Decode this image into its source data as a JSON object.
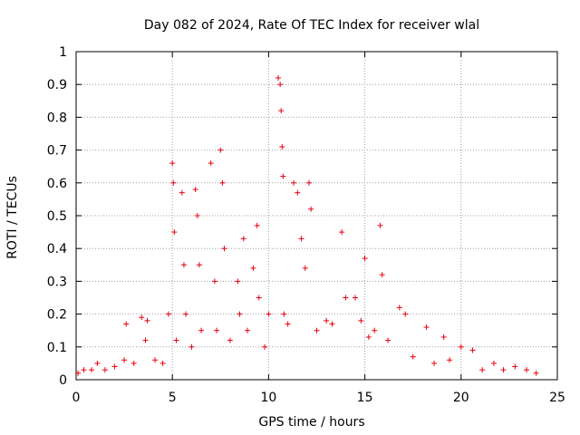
{
  "chart_data": {
    "type": "scatter",
    "title": "Day 082 of 2024, Rate Of TEC Index for receiver wlal",
    "xlabel": "GPS time / hours",
    "ylabel": "ROTI / TECUs",
    "xlim": [
      0,
      25
    ],
    "ylim": [
      0,
      1
    ],
    "xticks": [
      "0",
      "5",
      "10",
      "15",
      "20",
      "25"
    ],
    "yticks": [
      "0",
      "0.1",
      "0.2",
      "0.3",
      "0.4",
      "0.5",
      "0.6",
      "0.7",
      "0.8",
      "0.9",
      "1"
    ],
    "grid": true,
    "marker": "+",
    "color": "#e8000b",
    "series": [
      {
        "x": [
          0.1,
          0.4,
          0.8,
          1.1,
          1.5,
          2.0,
          2.5,
          2.6,
          3.0,
          3.4,
          3.6,
          3.7,
          4.1,
          4.5,
          4.8,
          5.0,
          5.05,
          5.1,
          5.2,
          5.5,
          5.6,
          5.7,
          6.0,
          6.2,
          6.3,
          6.4,
          6.5,
          7.0,
          7.2,
          7.3,
          7.5,
          7.6,
          7.7,
          8.0,
          8.4,
          8.5,
          8.7,
          8.9,
          9.2,
          9.4,
          9.5,
          9.8,
          10.0,
          10.5,
          10.6,
          10.65,
          10.7,
          10.75,
          10.8,
          11.0,
          11.3,
          11.5,
          11.7,
          11.9,
          12.1,
          12.2,
          12.5,
          13.0,
          13.3,
          13.8,
          14.0,
          14.5,
          14.8,
          15.0,
          15.2,
          15.5,
          15.8,
          15.9,
          16.2,
          16.8,
          17.1,
          17.5,
          18.2,
          18.6,
          19.1,
          19.4,
          20.0,
          20.6,
          21.1,
          21.7,
          22.2,
          22.8,
          23.4,
          23.9
        ],
        "y": [
          0.02,
          0.03,
          0.03,
          0.05,
          0.03,
          0.04,
          0.06,
          0.17,
          0.05,
          0.19,
          0.12,
          0.18,
          0.06,
          0.05,
          0.2,
          0.66,
          0.6,
          0.45,
          0.12,
          0.57,
          0.35,
          0.2,
          0.1,
          0.58,
          0.5,
          0.35,
          0.15,
          0.66,
          0.3,
          0.15,
          0.7,
          0.6,
          0.4,
          0.12,
          0.3,
          0.2,
          0.43,
          0.15,
          0.34,
          0.47,
          0.25,
          0.1,
          0.2,
          0.92,
          0.9,
          0.82,
          0.71,
          0.62,
          0.2,
          0.17,
          0.6,
          0.57,
          0.43,
          0.34,
          0.6,
          0.52,
          0.15,
          0.18,
          0.17,
          0.45,
          0.25,
          0.25,
          0.18,
          0.37,
          0.13,
          0.15,
          0.47,
          0.32,
          0.12,
          0.22,
          0.2,
          0.07,
          0.16,
          0.05,
          0.13,
          0.06,
          0.1,
          0.09,
          0.03,
          0.05,
          0.03,
          0.04,
          0.03,
          0.02
        ]
      }
    ]
  }
}
